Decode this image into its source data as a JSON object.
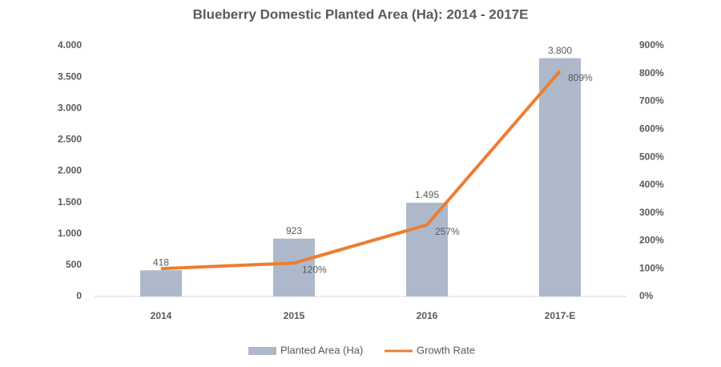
{
  "chart_data": {
    "type": "bar-line",
    "title": "Blueberry Domestic Planted Area (Ha): 2014 - 2017E",
    "categories": [
      "2014",
      "2015",
      "2016",
      "2017-E"
    ],
    "series": [
      {
        "name": "Planted Area (Ha)",
        "type": "bar",
        "color": "#adb9ca",
        "axis": "y",
        "values": [
          418,
          923,
          1495,
          3800
        ],
        "value_labels": [
          "418",
          "923",
          "1.495",
          "3.800"
        ]
      },
      {
        "name": "Growth Rate",
        "type": "line",
        "color": "#ed7d31",
        "axis": "y2",
        "values": [
          100,
          120,
          257,
          809
        ],
        "value_labels": [
          null,
          "120%",
          "257%",
          "809%"
        ]
      }
    ],
    "ylim": [
      0,
      4000
    ],
    "yticks": [
      0,
      500,
      {
        "value": 1000,
        "label": "1.000"
      },
      {
        "value": 1500,
        "label": "1.500"
      },
      {
        "value": 2000,
        "label": "2.000"
      },
      {
        "value": 2500,
        "label": "2.500"
      },
      {
        "value": 3000,
        "label": "3.000"
      },
      {
        "value": 3500,
        "label": "3.500"
      },
      {
        "value": 4000,
        "label": "4.000"
      }
    ],
    "y2lim": [
      0,
      900
    ],
    "y2ticks": [
      {
        "value": 0,
        "label": "0%"
      },
      {
        "value": 100,
        "label": "100%"
      },
      {
        "value": 200,
        "label": "200%"
      },
      {
        "value": 300,
        "label": "300%"
      },
      {
        "value": 400,
        "label": "400%"
      },
      {
        "value": 500,
        "label": "500%"
      },
      {
        "value": 600,
        "label": "600%"
      },
      {
        "value": 700,
        "label": "700%"
      },
      {
        "value": 800,
        "label": "800%"
      },
      {
        "value": 900,
        "label": "900%"
      }
    ],
    "legend": "bottom"
  }
}
